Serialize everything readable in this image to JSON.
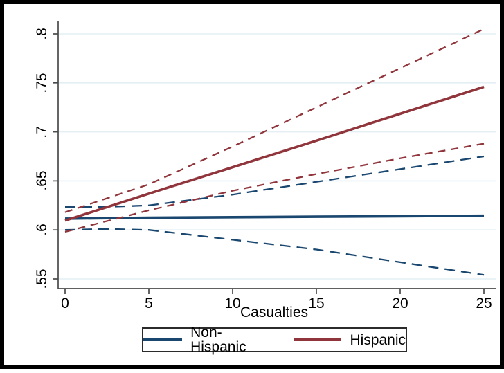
{
  "figure": {
    "background_color": "#ffffff",
    "frame_color": "#000000",
    "gridline_color": "#E4EFF4",
    "axis_line_color": "#4a4a4a",
    "text_color": "#000000"
  },
  "chart_data": {
    "type": "line",
    "title": "",
    "xlabel": "Casualties",
    "ylabel": "",
    "xlim": [
      0,
      25
    ],
    "ylim": [
      0.55,
      0.8
    ],
    "grid": true,
    "x_ticks": [
      {
        "value": 0,
        "label": "0"
      },
      {
        "value": 5,
        "label": "5"
      },
      {
        "value": 10,
        "label": "10"
      },
      {
        "value": 15,
        "label": "15"
      },
      {
        "value": 20,
        "label": "20"
      },
      {
        "value": 25,
        "label": "25"
      }
    ],
    "y_ticks": [
      {
        "value": 0.55,
        "label": ".55"
      },
      {
        "value": 0.6,
        "label": ".6"
      },
      {
        "value": 0.65,
        "label": ".65"
      },
      {
        "value": 0.7,
        "label": ".7"
      },
      {
        "value": 0.75,
        "label": ".75"
      },
      {
        "value": 0.8,
        "label": ".8"
      }
    ],
    "series": [
      {
        "name": "Non-Hispanic",
        "role": "fit",
        "color": "#1A476F",
        "style": "solid",
        "points": [
          [
            0,
            0.6115
          ],
          [
            5,
            0.6125
          ],
          [
            10,
            0.613
          ],
          [
            15,
            0.6135
          ],
          [
            20,
            0.614
          ],
          [
            25,
            0.6145
          ]
        ]
      },
      {
        "name": "Non-Hispanic",
        "role": "ci-upper",
        "color": "#1A476F",
        "style": "dashed",
        "points": [
          [
            0,
            0.6235
          ],
          [
            2.5,
            0.6235
          ],
          [
            5,
            0.625
          ],
          [
            10,
            0.636
          ],
          [
            15,
            0.649
          ],
          [
            20,
            0.662
          ],
          [
            25,
            0.675
          ]
        ]
      },
      {
        "name": "Non-Hispanic",
        "role": "ci-lower",
        "color": "#1A476F",
        "style": "dashed",
        "points": [
          [
            0,
            0.6
          ],
          [
            2.5,
            0.601
          ],
          [
            5,
            0.6
          ],
          [
            10,
            0.59
          ],
          [
            15,
            0.58
          ],
          [
            20,
            0.567
          ],
          [
            25,
            0.554
          ]
        ]
      },
      {
        "name": "Hispanic",
        "role": "fit",
        "color": "#90353B",
        "style": "solid",
        "points": [
          [
            0,
            0.6095
          ],
          [
            5,
            0.637
          ],
          [
            10,
            0.664
          ],
          [
            15,
            0.691
          ],
          [
            20,
            0.7185
          ],
          [
            25,
            0.746
          ]
        ]
      },
      {
        "name": "Hispanic",
        "role": "ci-upper",
        "color": "#90353B",
        "style": "dashed",
        "points": [
          [
            0,
            0.618
          ],
          [
            5,
            0.6465
          ],
          [
            10,
            0.685
          ],
          [
            15,
            0.725
          ],
          [
            20,
            0.765
          ],
          [
            25,
            0.805
          ]
        ]
      },
      {
        "name": "Hispanic",
        "role": "ci-lower",
        "color": "#90353B",
        "style": "dashed",
        "points": [
          [
            0,
            0.598
          ],
          [
            5,
            0.62
          ],
          [
            10,
            0.64
          ],
          [
            15,
            0.657
          ],
          [
            20,
            0.673
          ],
          [
            25,
            0.688
          ]
        ]
      }
    ],
    "legend": {
      "position": "bottom-center",
      "entries": [
        {
          "label": "Non-Hispanic",
          "color": "#1A476F"
        },
        {
          "label": "Hispanic",
          "color": "#90353B"
        }
      ]
    }
  }
}
